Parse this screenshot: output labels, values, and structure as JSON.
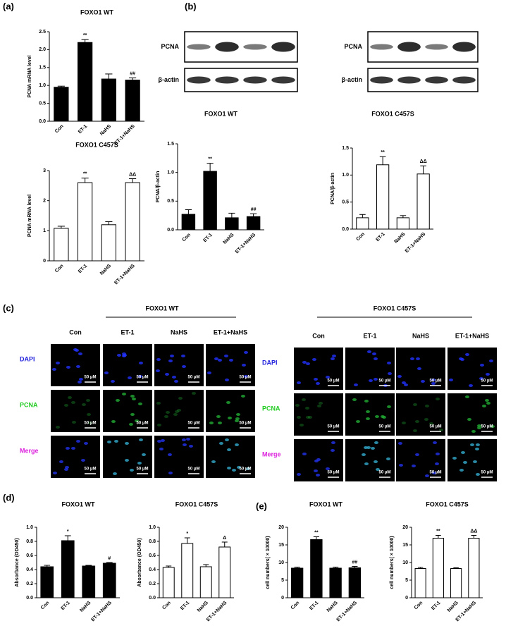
{
  "panels": [
    "(a)",
    "(b)",
    "(c)",
    "(d)",
    "(e)"
  ],
  "blots": {
    "labels": [
      "PCNA",
      "β-actin"
    ]
  },
  "microscopy": {
    "groups": [
      {
        "title": "FOXO1 WT"
      },
      {
        "title": "FOXO1 C457S"
      }
    ],
    "columns": [
      "Con",
      "ET-1",
      "NaHS",
      "ET-1+NaHS"
    ],
    "rows": [
      "DAPI",
      "PCNA",
      "Merge"
    ],
    "scale_label": "50 μM"
  },
  "chart_data": [
    {
      "type": "bar",
      "title": "FOXO1 WT",
      "ylabel": "PCNA mRNA level",
      "categories": [
        "Con",
        "ET-1",
        "NaHS",
        "ET-1+NaHS"
      ],
      "values": [
        0.95,
        2.2,
        1.18,
        1.15
      ],
      "errors": [
        0.03,
        0.08,
        0.14,
        0.06
      ],
      "annotations": [
        null,
        "**",
        null,
        "##"
      ],
      "color": "#000000",
      "ylim": [
        0,
        2.5
      ],
      "yticks": [
        {
          "value": 0,
          "label": "0.0"
        },
        0.5,
        {
          "value": 1,
          "label": "1.0"
        },
        1.5,
        {
          "value": 2,
          "label": "2.0"
        },
        2.5
      ]
    },
    {
      "type": "bar",
      "title": "FOXO1 C457S",
      "ylabel": "PCNA mRNA level",
      "categories": [
        "Con",
        "ET-1",
        "NaHS",
        "ET-1+NaHS"
      ],
      "values": [
        1.08,
        2.6,
        1.2,
        2.6
      ],
      "errors": [
        0.07,
        0.15,
        0.1,
        0.13
      ],
      "annotations": [
        null,
        "**",
        null,
        "ΔΔ"
      ],
      "color": "#ffffff",
      "ylim": [
        0,
        3
      ],
      "yticks": [
        0,
        1,
        2,
        3
      ]
    },
    {
      "type": "bar",
      "title": "FOXO1 WT",
      "ylabel": "PCNA/β-actin",
      "categories": [
        "Con",
        "ET-1",
        "NaHS",
        "ET-1+NaHS"
      ],
      "values": [
        0.27,
        1.02,
        0.21,
        0.23
      ],
      "errors": [
        0.08,
        0.14,
        0.08,
        0.05
      ],
      "annotations": [
        null,
        "**",
        null,
        "##"
      ],
      "color": "#000000",
      "ylim": [
        0,
        1.5
      ],
      "yticks": [
        {
          "value": 0,
          "label": "0.0"
        },
        0.5,
        {
          "value": 1,
          "label": "1.0"
        },
        1.5
      ]
    },
    {
      "type": "bar",
      "title": "FOXO1 C457S",
      "ylabel": "PCNA/β-actin",
      "categories": [
        "Con",
        "ET-1",
        "NaHS",
        "ET-1+NaHS"
      ],
      "values": [
        0.21,
        1.19,
        0.21,
        1.02
      ],
      "errors": [
        0.06,
        0.15,
        0.04,
        0.15
      ],
      "annotations": [
        null,
        "**",
        null,
        "ΔΔ"
      ],
      "color": "#ffffff",
      "ylim": [
        0,
        1.5
      ],
      "yticks": [
        {
          "value": 0,
          "label": "0.0"
        },
        0.5,
        {
          "value": 1,
          "label": "1.0"
        },
        1.5
      ]
    },
    {
      "type": "bar",
      "title": "FOXO1 WT",
      "ylabel": "Absorbance (OD450)",
      "categories": [
        "Con",
        "ET-1",
        "NaHS",
        "ET-1+NaHS"
      ],
      "values": [
        0.44,
        0.81,
        0.45,
        0.49
      ],
      "errors": [
        0.02,
        0.07,
        0.01,
        0.01
      ],
      "annotations": [
        null,
        "*",
        null,
        "#"
      ],
      "color": "#000000",
      "ylim": [
        0,
        1
      ],
      "yticks": [
        {
          "value": 0,
          "label": "0.0"
        },
        0.2,
        0.4,
        0.6,
        0.8,
        {
          "value": 1,
          "label": "1.0"
        }
      ]
    },
    {
      "type": "bar",
      "title": "FOXO1 C457S",
      "ylabel": "Absorbance (OD450)",
      "categories": [
        "Con",
        "ET-1",
        "NaHS",
        "ET-1+NaHS"
      ],
      "values": [
        0.43,
        0.77,
        0.44,
        0.72
      ],
      "errors": [
        0.02,
        0.08,
        0.03,
        0.07
      ],
      "annotations": [
        null,
        "*",
        null,
        "Δ"
      ],
      "color": "#ffffff",
      "ylim": [
        0,
        1
      ],
      "yticks": [
        {
          "value": 0,
          "label": "0.0"
        },
        0.2,
        0.4,
        0.6,
        0.8,
        {
          "value": 1,
          "label": "1.0"
        }
      ]
    },
    {
      "type": "bar",
      "title": "FOXO1 WT",
      "ylabel": "cell numbers( × 10000)",
      "categories": [
        "Con",
        "ET-1",
        "NaHS",
        "ET-1+NaHS"
      ],
      "values": [
        8.4,
        16.5,
        8.4,
        8.5
      ],
      "errors": [
        0.3,
        0.8,
        0.3,
        0.4
      ],
      "annotations": [
        null,
        "**",
        null,
        "##"
      ],
      "color": "#000000",
      "ylim": [
        0,
        20
      ],
      "yticks": [
        0,
        5,
        10,
        15,
        20
      ]
    },
    {
      "type": "bar",
      "title": "FOXO1 C457S",
      "ylabel": "cell numbers( × 10000)",
      "categories": [
        "Con",
        "ET-1",
        "NaHS",
        "ET-1+NaHS"
      ],
      "values": [
        8.3,
        16.9,
        8.3,
        16.9
      ],
      "errors": [
        0.3,
        0.8,
        0.2,
        0.8
      ],
      "annotations": [
        null,
        "**",
        null,
        "ΔΔ"
      ],
      "color": "#ffffff",
      "ylim": [
        0,
        20
      ],
      "yticks": [
        0,
        5,
        10,
        15,
        20
      ]
    }
  ]
}
